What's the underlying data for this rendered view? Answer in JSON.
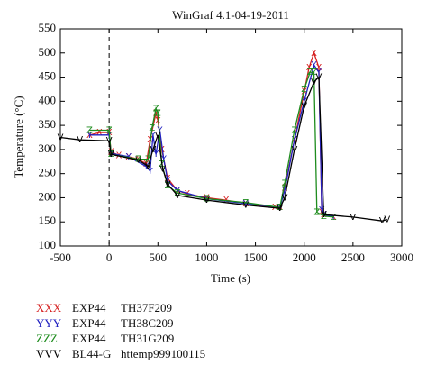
{
  "chart_data": {
    "type": "line",
    "title": "WinGraf 4.1-04-19-2011",
    "x_label": "Time (s)",
    "y_label": "Temperature (°C)",
    "xlim": [
      -500,
      3000
    ],
    "xticks": [
      -500,
      0,
      500,
      1000,
      1500,
      2000,
      2500,
      3000
    ],
    "ylim": [
      100,
      550
    ],
    "yticks": [
      100,
      150,
      200,
      250,
      300,
      350,
      400,
      450,
      500,
      550
    ],
    "vline": 0,
    "series": [
      {
        "marker_label": "XXX",
        "marker": "X",
        "name": "EXP44",
        "tag": "TH37F209",
        "color": "#d62020",
        "x": [
          -200,
          -100,
          0,
          20,
          100,
          200,
          300,
          380,
          420,
          480,
          500,
          540,
          600,
          700,
          800,
          1000,
          1200,
          1400,
          1700,
          1750,
          1800,
          1900,
          2000,
          2050,
          2100,
          2150,
          2180,
          2200,
          2300
        ],
        "values": [
          330,
          335,
          335,
          295,
          288,
          285,
          280,
          270,
          320,
          375,
          360,
          300,
          240,
          215,
          208,
          200,
          195,
          188,
          180,
          180,
          220,
          320,
          420,
          470,
          500,
          470,
          170,
          165,
          160
        ]
      },
      {
        "marker_label": "YYY",
        "marker": "Y",
        "name": "EXP44",
        "tag": "TH38C209",
        "color": "#2020c0",
        "x": [
          -200,
          0,
          20,
          200,
          380,
          420,
          450,
          480,
          520,
          560,
          600,
          700,
          1000,
          1400,
          1750,
          1800,
          1900,
          2000,
          2100,
          2150,
          2180,
          2200,
          2300
        ],
        "values": [
          330,
          330,
          292,
          285,
          265,
          255,
          330,
          290,
          340,
          280,
          235,
          215,
          198,
          188,
          180,
          215,
          320,
          400,
          475,
          460,
          175,
          165,
          160
        ]
      },
      {
        "marker_label": "ZZZ",
        "marker": "Z",
        "name": "EXP44",
        "tag": "TH31G209",
        "color": "#1e8c1e",
        "x": [
          -200,
          0,
          20,
          300,
          400,
          440,
          480,
          500,
          540,
          600,
          700,
          1000,
          1400,
          1750,
          1800,
          1900,
          2000,
          2060,
          2100,
          2130,
          2200,
          2300
        ],
        "values": [
          340,
          340,
          290,
          280,
          280,
          345,
          385,
          375,
          270,
          225,
          210,
          198,
          190,
          180,
          230,
          340,
          425,
          460,
          460,
          170,
          162,
          160
        ]
      },
      {
        "marker_label": "VVV",
        "marker": "V",
        "name": "BL44-G",
        "tag": "httemp999100115",
        "color": "#000000",
        "x": [
          -500,
          -300,
          0,
          20,
          300,
          400,
          450,
          500,
          550,
          600,
          700,
          1000,
          1400,
          1750,
          1800,
          1900,
          2000,
          2100,
          2150,
          2200,
          2500,
          2800,
          2850
        ],
        "values": [
          325,
          320,
          318,
          290,
          278,
          265,
          300,
          330,
          260,
          228,
          205,
          195,
          185,
          178,
          200,
          300,
          390,
          440,
          450,
          165,
          160,
          152,
          155
        ]
      }
    ]
  }
}
